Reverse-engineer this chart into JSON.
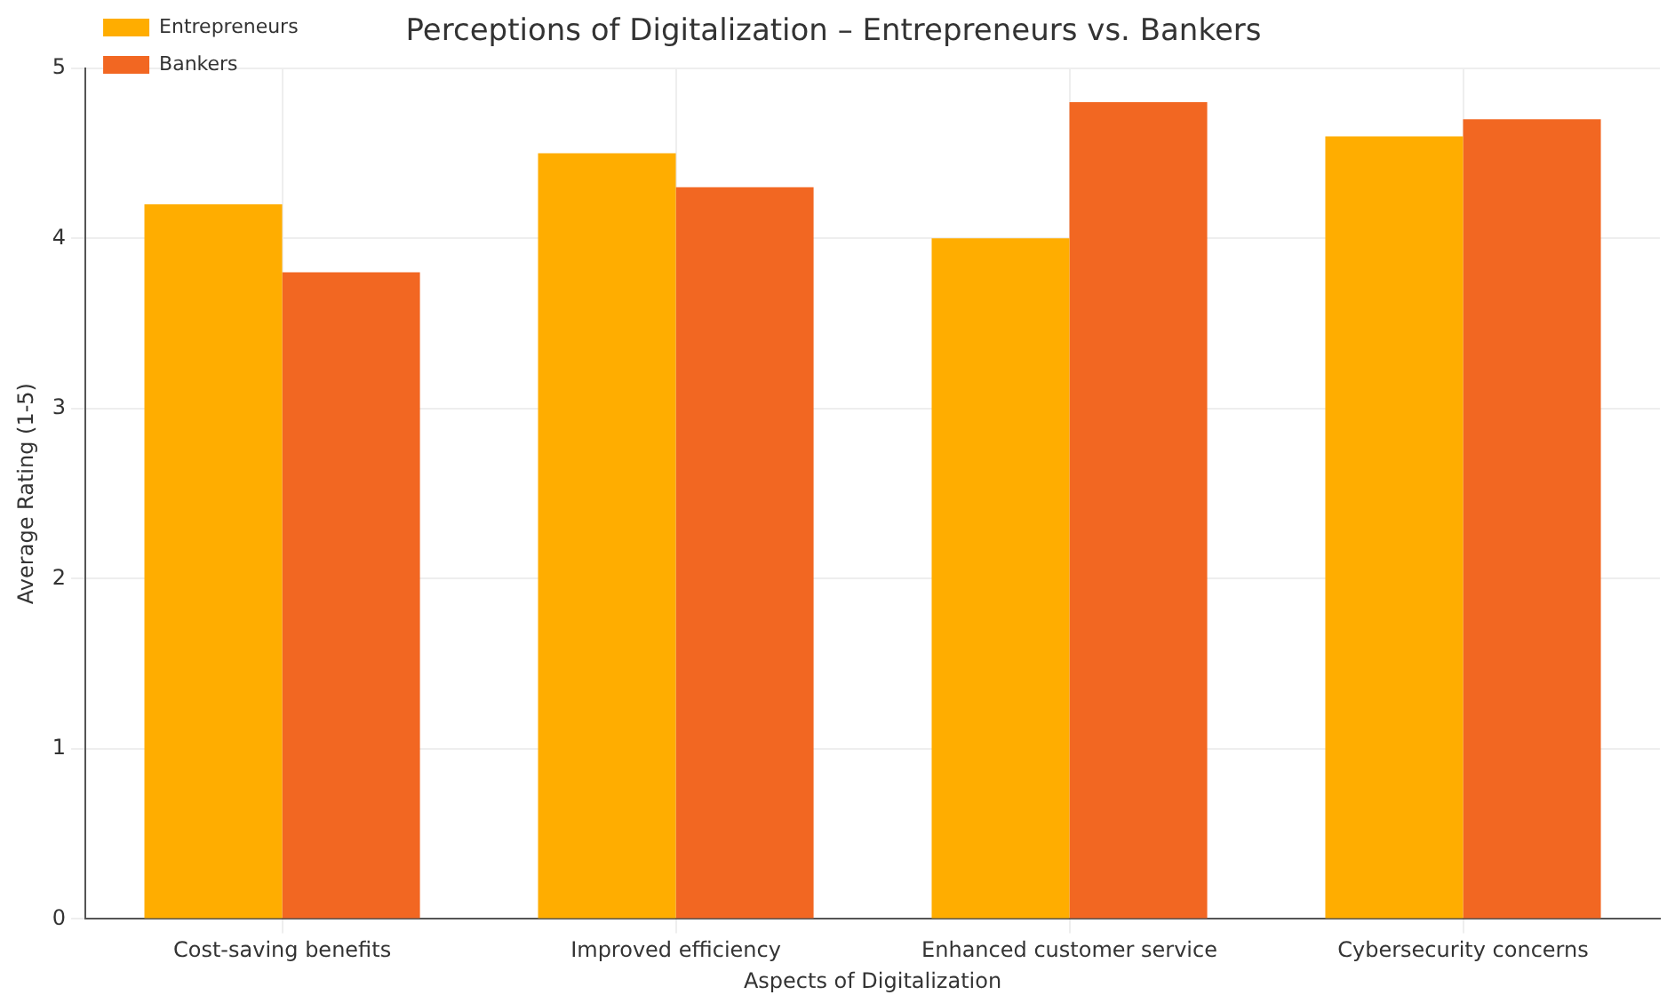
{
  "chart_data": {
    "type": "bar",
    "title": "Perceptions of Digitalization – Entrepreneurs vs. Bankers",
    "xlabel": "Aspects of Digitalization",
    "ylabel": "Average Rating (1-5)",
    "categories": [
      "Cost-saving benefits",
      "Improved efficiency",
      "Enhanced customer service",
      "Cybersecurity concerns"
    ],
    "series": [
      {
        "name": "Entrepreneurs",
        "color": "#ffad00",
        "values": [
          4.2,
          4.5,
          4.0,
          4.6
        ]
      },
      {
        "name": "Bankers",
        "color": "#f26722",
        "values": [
          3.8,
          4.3,
          4.8,
          4.7
        ]
      }
    ],
    "ylim": [
      0,
      5
    ],
    "yticks": [
      0,
      1,
      2,
      3,
      4,
      5
    ],
    "grid": true,
    "legend": "top left"
  }
}
